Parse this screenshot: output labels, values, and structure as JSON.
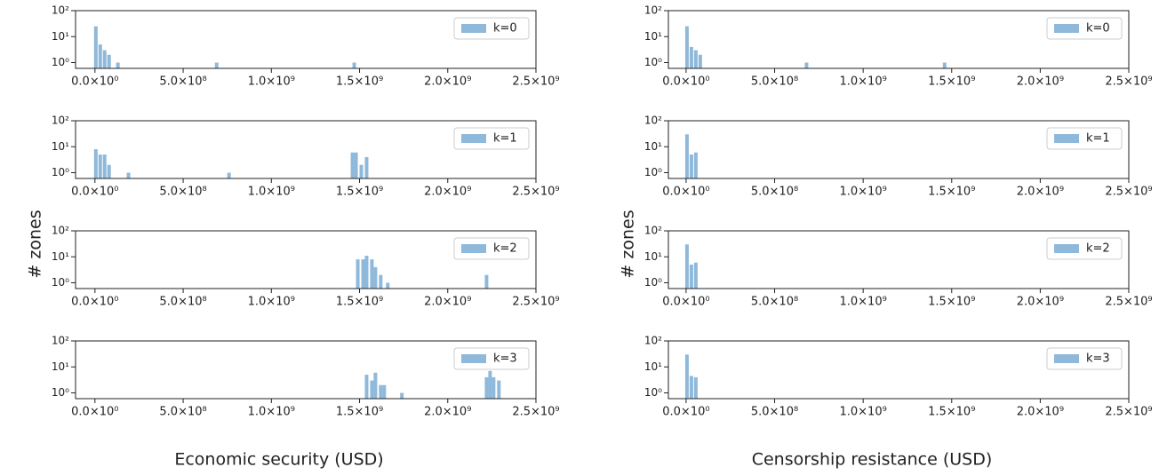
{
  "chart_data": [
    {
      "type": "bar",
      "ylabel": "# zones",
      "x": [
        5000000,
        30000000,
        55000000,
        80000000,
        130000000,
        690000000,
        1470000000
      ],
      "series": [
        {
          "name": "k=0",
          "color": "#8fb9da",
          "values": [
            25,
            5,
            3,
            2,
            1,
            1,
            1
          ]
        }
      ],
      "log_y": true,
      "ylim": [
        0.6,
        100
      ],
      "yticks": [
        {
          "value": 1,
          "label": "10⁰"
        },
        {
          "value": 10,
          "label": "10¹"
        },
        {
          "value": 100,
          "label": "10²"
        }
      ],
      "xlim": [
        -110000000,
        2500000000
      ],
      "xticks": [
        {
          "value": 0,
          "label": "0.0×10⁰"
        },
        {
          "value": 500000000,
          "label": "5.0×10⁸"
        },
        {
          "value": 1000000000,
          "label": "1.0×10⁹"
        },
        {
          "value": 1500000000,
          "label": "1.5×10⁹"
        },
        {
          "value": 2000000000,
          "label": "2.0×10⁹"
        },
        {
          "value": 2500000000,
          "label": "2.5×10⁹"
        }
      ],
      "legend": "upper right"
    },
    {
      "type": "bar",
      "x": [
        5000000,
        30000000,
        55000000,
        80000000,
        190000000,
        760000000,
        1460000000,
        1480000000,
        1510000000,
        1540000000
      ],
      "series": [
        {
          "name": "k=1",
          "color": "#8fb9da",
          "values": [
            8,
            5,
            5,
            2,
            1,
            1,
            6,
            6,
            2,
            4
          ]
        }
      ],
      "log_y": true,
      "ylim": [
        0.6,
        100
      ],
      "yticks": [
        {
          "value": 1,
          "label": "10⁰"
        },
        {
          "value": 10,
          "label": "10¹"
        },
        {
          "value": 100,
          "label": "10²"
        }
      ],
      "xlim": [
        -110000000,
        2500000000
      ],
      "xticks": [
        {
          "value": 0,
          "label": "0.0×10⁰"
        },
        {
          "value": 500000000,
          "label": "5.0×10⁸"
        },
        {
          "value": 1000000000,
          "label": "1.0×10⁹"
        },
        {
          "value": 1500000000,
          "label": "1.5×10⁹"
        },
        {
          "value": 2000000000,
          "label": "2.0×10⁹"
        },
        {
          "value": 2500000000,
          "label": "2.5×10⁹"
        }
      ],
      "legend": "upper right"
    },
    {
      "type": "bar",
      "x": [
        1490000000,
        1520000000,
        1540000000,
        1570000000,
        1590000000,
        1620000000,
        1660000000,
        2220000000
      ],
      "series": [
        {
          "name": "k=2",
          "color": "#8fb9da",
          "values": [
            8,
            8,
            11,
            8,
            4,
            2,
            1,
            2
          ]
        }
      ],
      "log_y": true,
      "ylim": [
        0.6,
        100
      ],
      "yticks": [
        {
          "value": 1,
          "label": "10⁰"
        },
        {
          "value": 10,
          "label": "10¹"
        },
        {
          "value": 100,
          "label": "10²"
        }
      ],
      "xlim": [
        -110000000,
        2500000000
      ],
      "xticks": [
        {
          "value": 0,
          "label": "0.0×10⁰"
        },
        {
          "value": 500000000,
          "label": "5.0×10⁸"
        },
        {
          "value": 1000000000,
          "label": "1.0×10⁹"
        },
        {
          "value": 1500000000,
          "label": "1.5×10⁹"
        },
        {
          "value": 2000000000,
          "label": "2.0×10⁹"
        },
        {
          "value": 2500000000,
          "label": "2.5×10⁹"
        }
      ],
      "legend": "upper right"
    },
    {
      "type": "bar",
      "xlabel": "Economic security (USD)",
      "x": [
        1540000000,
        1570000000,
        1590000000,
        1620000000,
        1640000000,
        1740000000,
        2220000000,
        2240000000,
        2260000000,
        2290000000
      ],
      "series": [
        {
          "name": "k=3",
          "color": "#8fb9da",
          "values": [
            5,
            3,
            6,
            2,
            2,
            1,
            4,
            7,
            4,
            3
          ]
        }
      ],
      "log_y": true,
      "ylim": [
        0.6,
        100
      ],
      "yticks": [
        {
          "value": 1,
          "label": "10⁰"
        },
        {
          "value": 10,
          "label": "10¹"
        },
        {
          "value": 100,
          "label": "10²"
        }
      ],
      "xlim": [
        -110000000,
        2500000000
      ],
      "xticks": [
        {
          "value": 0,
          "label": "0.0×10⁰"
        },
        {
          "value": 500000000,
          "label": "5.0×10⁸"
        },
        {
          "value": 1000000000,
          "label": "1.0×10⁹"
        },
        {
          "value": 1500000000,
          "label": "1.5×10⁹"
        },
        {
          "value": 2000000000,
          "label": "2.0×10⁹"
        },
        {
          "value": 2500000000,
          "label": "2.5×10⁹"
        }
      ],
      "legend": "upper right"
    },
    {
      "type": "bar",
      "ylabel": "# zones",
      "x": [
        5000000,
        30000000,
        55000000,
        80000000,
        680000000,
        1460000000
      ],
      "series": [
        {
          "name": "k=0",
          "color": "#8fb9da",
          "values": [
            25,
            4,
            3,
            2,
            1,
            1
          ]
        }
      ],
      "log_y": true,
      "ylim": [
        0.6,
        100
      ],
      "yticks": [
        {
          "value": 1,
          "label": "10⁰"
        },
        {
          "value": 10,
          "label": "10¹"
        },
        {
          "value": 100,
          "label": "10²"
        }
      ],
      "xlim": [
        -100000000,
        2500000000
      ],
      "xticks": [
        {
          "value": 0,
          "label": "0.0×10⁰"
        },
        {
          "value": 500000000,
          "label": "5.0×10⁸"
        },
        {
          "value": 1000000000,
          "label": "1.0×10⁹"
        },
        {
          "value": 1500000000,
          "label": "1.5×10⁹"
        },
        {
          "value": 2000000000,
          "label": "2.0×10⁹"
        },
        {
          "value": 2500000000,
          "label": "2.5×10⁹"
        }
      ],
      "legend": "upper right"
    },
    {
      "type": "bar",
      "x": [
        5000000,
        30000000,
        55000000
      ],
      "series": [
        {
          "name": "k=1",
          "color": "#8fb9da",
          "values": [
            30,
            5,
            6
          ]
        }
      ],
      "log_y": true,
      "ylim": [
        0.6,
        100
      ],
      "yticks": [
        {
          "value": 1,
          "label": "10⁰"
        },
        {
          "value": 10,
          "label": "10¹"
        },
        {
          "value": 100,
          "label": "10²"
        }
      ],
      "xlim": [
        -100000000,
        2500000000
      ],
      "xticks": [
        {
          "value": 0,
          "label": "0.0×10⁰"
        },
        {
          "value": 500000000,
          "label": "5.0×10⁸"
        },
        {
          "value": 1000000000,
          "label": "1.0×10⁹"
        },
        {
          "value": 1500000000,
          "label": "1.5×10⁹"
        },
        {
          "value": 2000000000,
          "label": "2.0×10⁹"
        },
        {
          "value": 2500000000,
          "label": "2.5×10⁹"
        }
      ],
      "legend": "upper right"
    },
    {
      "type": "bar",
      "x": [
        5000000,
        30000000,
        55000000
      ],
      "series": [
        {
          "name": "k=2",
          "color": "#8fb9da",
          "values": [
            30,
            5,
            6
          ]
        }
      ],
      "log_y": true,
      "ylim": [
        0.6,
        100
      ],
      "yticks": [
        {
          "value": 1,
          "label": "10⁰"
        },
        {
          "value": 10,
          "label": "10¹"
        },
        {
          "value": 100,
          "label": "10²"
        }
      ],
      "xlim": [
        -100000000,
        2500000000
      ],
      "xticks": [
        {
          "value": 0,
          "label": "0.0×10⁰"
        },
        {
          "value": 500000000,
          "label": "5.0×10⁸"
        },
        {
          "value": 1000000000,
          "label": "1.0×10⁹"
        },
        {
          "value": 1500000000,
          "label": "1.5×10⁹"
        },
        {
          "value": 2000000000,
          "label": "2.0×10⁹"
        },
        {
          "value": 2500000000,
          "label": "2.5×10⁹"
        }
      ],
      "legend": "upper right"
    },
    {
      "type": "bar",
      "xlabel": "Censorship resistance (USD)",
      "x": [
        5000000,
        30000000,
        55000000
      ],
      "series": [
        {
          "name": "k=3",
          "color": "#8fb9da",
          "values": [
            30,
            4.5,
            4
          ]
        }
      ],
      "log_y": true,
      "ylim": [
        0.6,
        100
      ],
      "yticks": [
        {
          "value": 1,
          "label": "10⁰"
        },
        {
          "value": 10,
          "label": "10¹"
        },
        {
          "value": 100,
          "label": "10²"
        }
      ],
      "xlim": [
        -100000000,
        2500000000
      ],
      "xticks": [
        {
          "value": 0,
          "label": "0.0×10⁰"
        },
        {
          "value": 500000000,
          "label": "5.0×10⁸"
        },
        {
          "value": 1000000000,
          "label": "1.0×10⁹"
        },
        {
          "value": 1500000000,
          "label": "1.5×10⁹"
        },
        {
          "value": 2000000000,
          "label": "2.0×10⁹"
        },
        {
          "value": 2500000000,
          "label": "2.5×10⁹"
        }
      ],
      "legend": "upper right"
    }
  ]
}
